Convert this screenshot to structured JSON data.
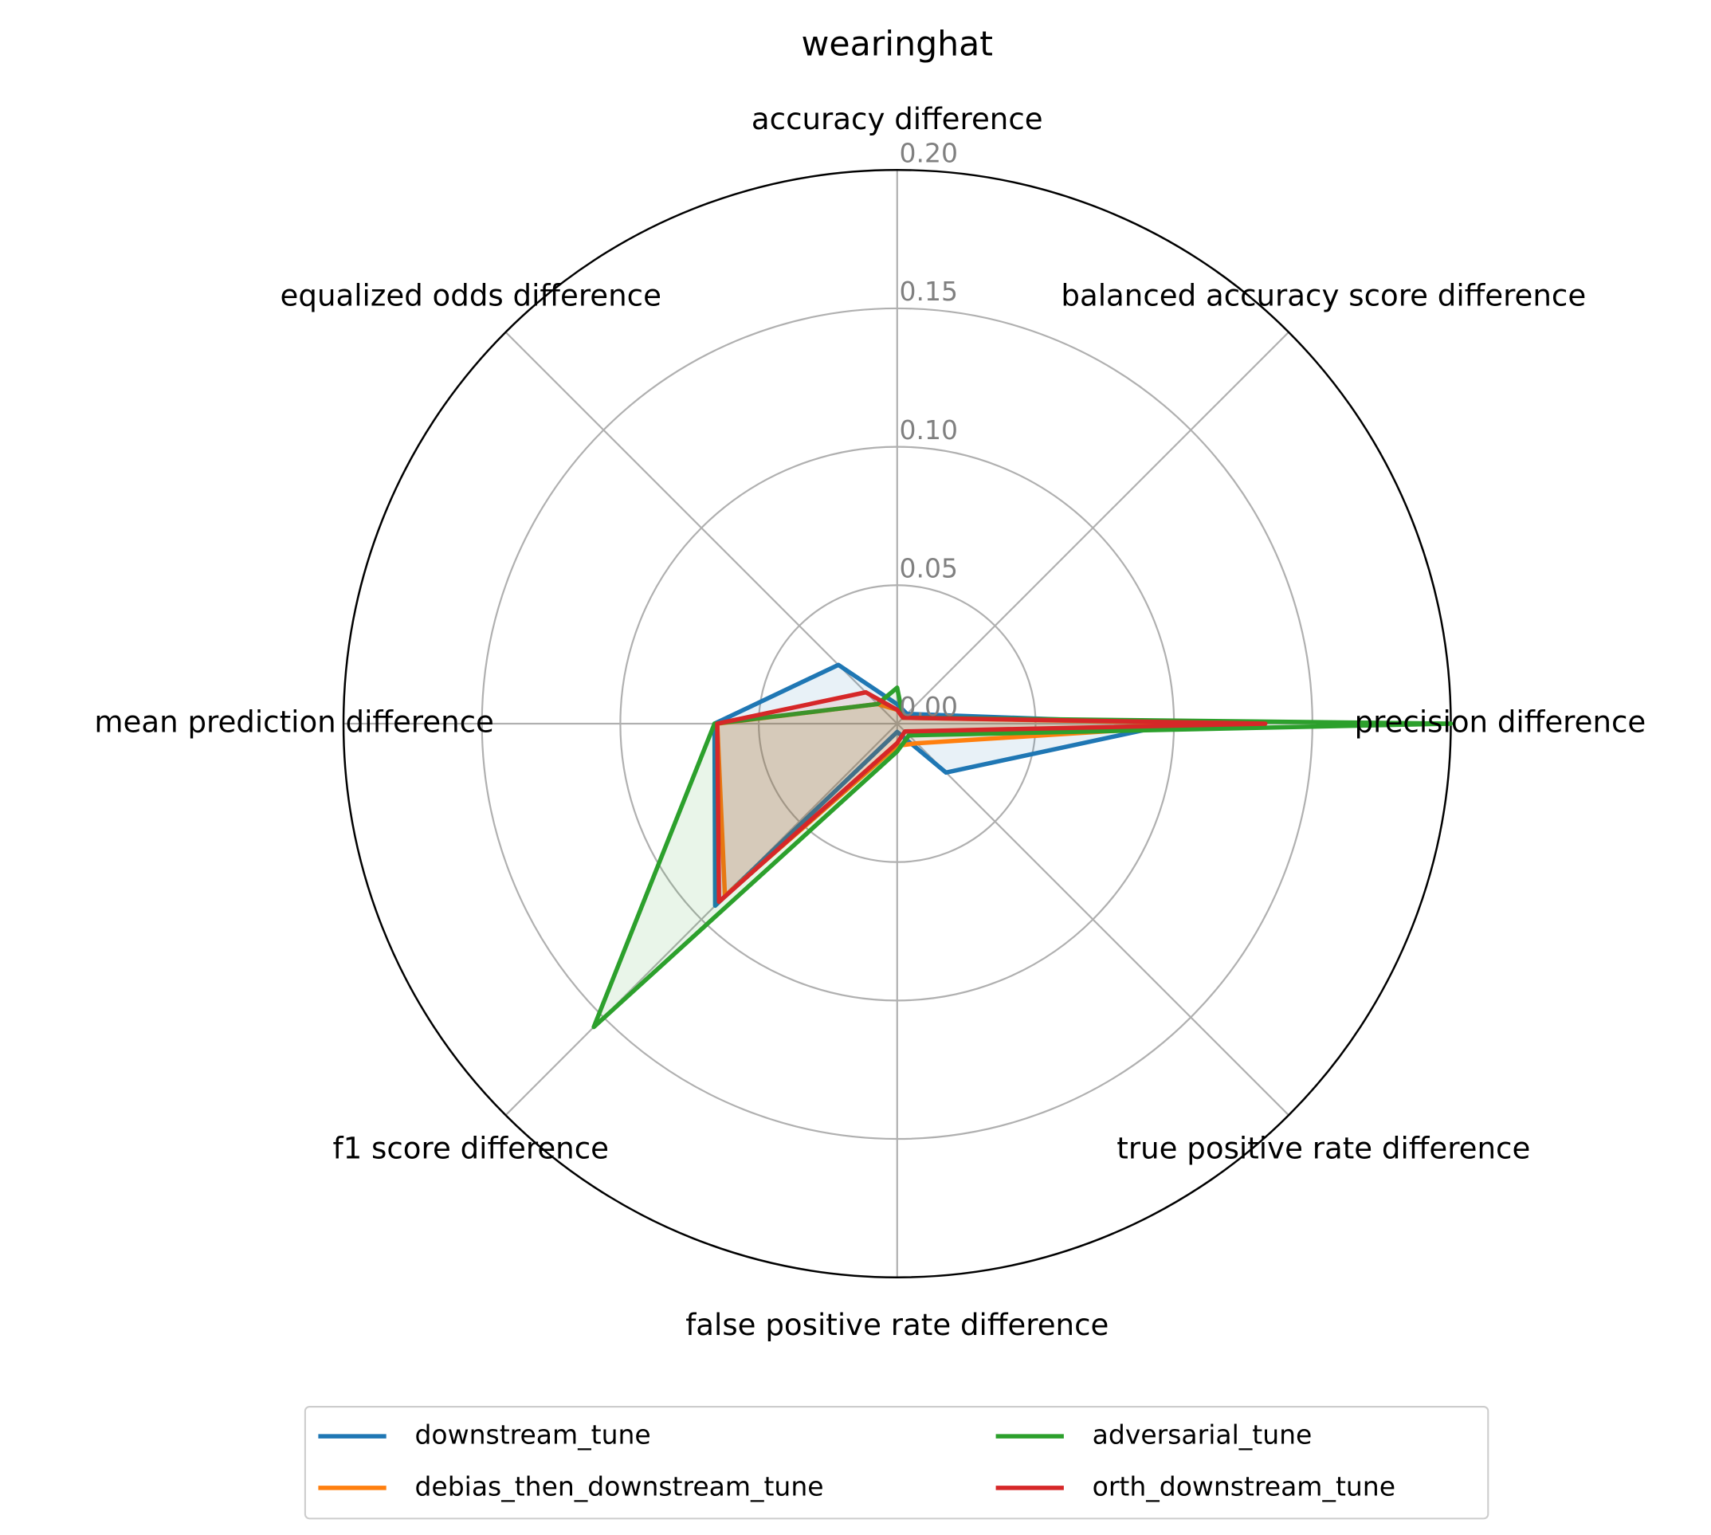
{
  "chart_data": {
    "type": "radar",
    "title": "wearinghat",
    "categories": [
      "accuracy difference",
      "balanced accuracy score difference",
      "precision difference",
      "true positive rate difference",
      "false positive rate difference",
      "f1 score difference",
      "mean prediction difference",
      "equalized odds difference"
    ],
    "series": [
      {
        "name": "downstream_tune",
        "color": "#1f77b4",
        "values": [
          0.007,
          0.005,
          0.1,
          0.025,
          0.003,
          0.093,
          0.066,
          0.03
        ]
      },
      {
        "name": "debias_then_downstream_tune",
        "color": "#ff7f0e",
        "values": [
          0.005,
          0.003,
          0.12,
          0.01,
          0.008,
          0.088,
          0.065,
          0.01
        ]
      },
      {
        "name": "adversarial_tune",
        "color": "#2ca02c",
        "values": [
          0.013,
          0.003,
          0.2,
          0.006,
          0.01,
          0.155,
          0.066,
          0.01
        ]
      },
      {
        "name": "orth_downstream_tune",
        "color": "#d62728",
        "values": [
          0.005,
          0.003,
          0.133,
          0.004,
          0.007,
          0.091,
          0.065,
          0.016
        ]
      }
    ],
    "rlim": [
      0,
      0.2
    ],
    "rticks": [
      {
        "value": 0,
        "label": "0.00"
      },
      {
        "value": 0.05,
        "label": "0.05"
      },
      {
        "value": 0.1,
        "label": "0.10"
      },
      {
        "value": 0.15,
        "label": "0.15"
      },
      {
        "value": 0.2,
        "label": "0.20"
      }
    ],
    "grid": true,
    "legend": "lower center"
  }
}
